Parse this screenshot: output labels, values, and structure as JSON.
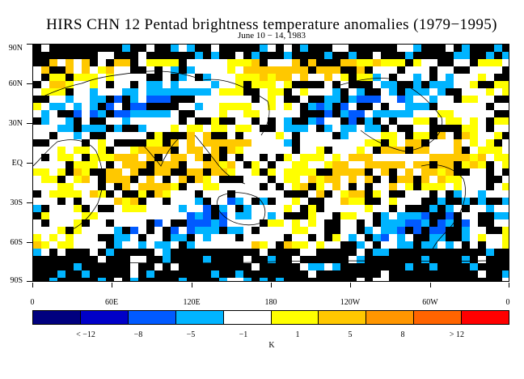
{
  "title": "HIRS CHN 12 Pentad brightness temperature anomalies (1979−1995)",
  "subtitle": "June 10 − 14, 1983",
  "lat_labels": [
    "90N",
    "60N",
    "30N",
    "EQ",
    "30S",
    "60S",
    "90S"
  ],
  "lon_labels": [
    "0",
    "60E",
    "120E",
    "180",
    "120W",
    "60W",
    "0"
  ],
  "colorbar": {
    "colors": [
      "#00007f",
      "#0000c8",
      "#005aff",
      "#00b4ff",
      "#ffffff",
      "#ffff00",
      "#ffc800",
      "#ff9600",
      "#ff6400",
      "#ff0000"
    ],
    "labels": [
      "< −12",
      "−8",
      "−5",
      "−1",
      "1",
      "5",
      "8",
      "> 12"
    ],
    "unit": "K"
  }
}
